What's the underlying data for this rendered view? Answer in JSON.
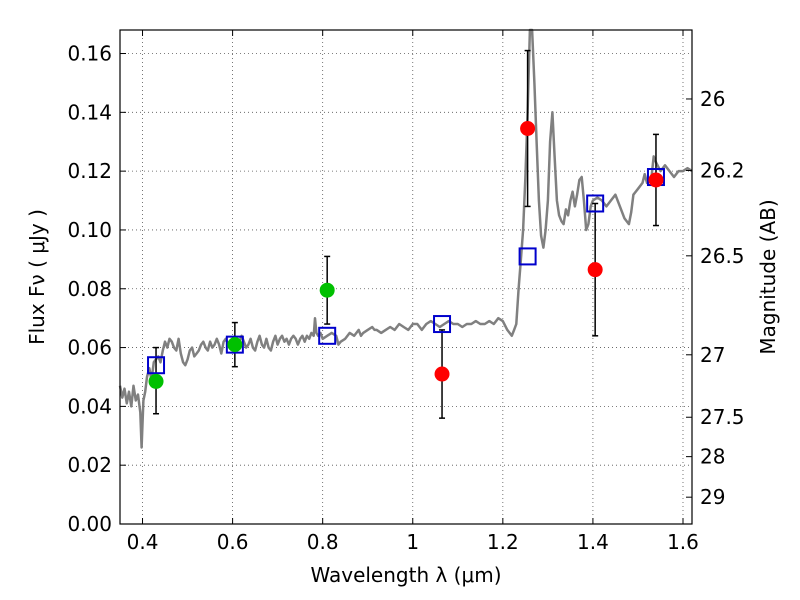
{
  "chart_data": {
    "type": "scatter",
    "xlabel": "Wavelength  λ (μm)",
    "ylabel": "Flux  Fν  ( μJy )",
    "ylabel_right": "Magnitude (AB)",
    "xlim": [
      0.35,
      1.62
    ],
    "ylim": [
      0.0,
      0.168
    ],
    "grid": true,
    "x_ticks": [
      0.4,
      0.6,
      0.8,
      1.0,
      1.2,
      1.4,
      1.6
    ],
    "x_tick_labels": [
      "0.4",
      "0.6",
      "0.8",
      "1",
      "1.2",
      "1.4",
      "1.6"
    ],
    "y_ticks": [
      0.0,
      0.02,
      0.04,
      0.06,
      0.08,
      0.1,
      0.12,
      0.14,
      0.16
    ],
    "y_tick_labels": [
      "0.00",
      "0.02",
      "0.04",
      "0.06",
      "0.08",
      "0.10",
      "0.12",
      "0.14",
      "0.16"
    ],
    "right_ticks": [
      {
        "label": "26",
        "mag": 26.0
      },
      {
        "label": "26.2",
        "mag": 26.2
      },
      {
        "label": "26.5",
        "mag": 26.5
      },
      {
        "label": "27",
        "mag": 27.0
      },
      {
        "label": "27.5",
        "mag": 27.5
      },
      {
        "label": "28",
        "mag": 28.0
      },
      {
        "label": "29",
        "mag": 29.0
      }
    ],
    "colors": {
      "spectrum": "#808080",
      "model_box": "#0000cc",
      "green_points": "#00c000",
      "red_points": "#ff0000",
      "errorbar": "#000000",
      "grid": "#555555"
    },
    "spectrum": [
      [
        0.35,
        0.047
      ],
      [
        0.355,
        0.043
      ],
      [
        0.36,
        0.046
      ],
      [
        0.365,
        0.041
      ],
      [
        0.37,
        0.045
      ],
      [
        0.375,
        0.04
      ],
      [
        0.38,
        0.047
      ],
      [
        0.385,
        0.042
      ],
      [
        0.39,
        0.044
      ],
      [
        0.395,
        0.038
      ],
      [
        0.398,
        0.026
      ],
      [
        0.402,
        0.042
      ],
      [
        0.406,
        0.045
      ],
      [
        0.41,
        0.05
      ],
      [
        0.415,
        0.053
      ],
      [
        0.42,
        0.049
      ],
      [
        0.425,
        0.055
      ],
      [
        0.43,
        0.056
      ],
      [
        0.435,
        0.057
      ],
      [
        0.44,
        0.055
      ],
      [
        0.445,
        0.059
      ],
      [
        0.45,
        0.062
      ],
      [
        0.455,
        0.06
      ],
      [
        0.46,
        0.063
      ],
      [
        0.465,
        0.062
      ],
      [
        0.47,
        0.06
      ],
      [
        0.475,
        0.059
      ],
      [
        0.48,
        0.063
      ],
      [
        0.485,
        0.058
      ],
      [
        0.49,
        0.055
      ],
      [
        0.495,
        0.054
      ],
      [
        0.5,
        0.056
      ],
      [
        0.505,
        0.059
      ],
      [
        0.51,
        0.06
      ],
      [
        0.515,
        0.057
      ],
      [
        0.52,
        0.058
      ],
      [
        0.525,
        0.059
      ],
      [
        0.53,
        0.061
      ],
      [
        0.535,
        0.062
      ],
      [
        0.54,
        0.06
      ],
      [
        0.545,
        0.059
      ],
      [
        0.55,
        0.062
      ],
      [
        0.555,
        0.06
      ],
      [
        0.56,
        0.061
      ],
      [
        0.565,
        0.063
      ],
      [
        0.57,
        0.061
      ],
      [
        0.575,
        0.058
      ],
      [
        0.58,
        0.062
      ],
      [
        0.585,
        0.063
      ],
      [
        0.59,
        0.061
      ],
      [
        0.6,
        0.062
      ],
      [
        0.61,
        0.059
      ],
      [
        0.615,
        0.062
      ],
      [
        0.62,
        0.064
      ],
      [
        0.625,
        0.062
      ],
      [
        0.63,
        0.06
      ],
      [
        0.635,
        0.061
      ],
      [
        0.64,
        0.063
      ],
      [
        0.645,
        0.06
      ],
      [
        0.65,
        0.059
      ],
      [
        0.655,
        0.062
      ],
      [
        0.66,
        0.064
      ],
      [
        0.665,
        0.061
      ],
      [
        0.67,
        0.06
      ],
      [
        0.675,
        0.063
      ],
      [
        0.68,
        0.06
      ],
      [
        0.685,
        0.059
      ],
      [
        0.69,
        0.062
      ],
      [
        0.695,
        0.064
      ],
      [
        0.7,
        0.061
      ],
      [
        0.705,
        0.063
      ],
      [
        0.71,
        0.064
      ],
      [
        0.715,
        0.062
      ],
      [
        0.72,
        0.063
      ],
      [
        0.725,
        0.061
      ],
      [
        0.73,
        0.063
      ],
      [
        0.735,
        0.064
      ],
      [
        0.74,
        0.063
      ],
      [
        0.745,
        0.061
      ],
      [
        0.75,
        0.063
      ],
      [
        0.755,
        0.064
      ],
      [
        0.76,
        0.062
      ],
      [
        0.765,
        0.064
      ],
      [
        0.77,
        0.063
      ],
      [
        0.775,
        0.065
      ],
      [
        0.78,
        0.064
      ],
      [
        0.783,
        0.07
      ],
      [
        0.786,
        0.065
      ],
      [
        0.79,
        0.064
      ],
      [
        0.795,
        0.065
      ],
      [
        0.8,
        0.063
      ],
      [
        0.81,
        0.064
      ],
      [
        0.82,
        0.065
      ],
      [
        0.83,
        0.064
      ],
      [
        0.835,
        0.061
      ],
      [
        0.84,
        0.062
      ],
      [
        0.85,
        0.063
      ],
      [
        0.86,
        0.065
      ],
      [
        0.87,
        0.064
      ],
      [
        0.88,
        0.066
      ],
      [
        0.885,
        0.064
      ],
      [
        0.89,
        0.065
      ],
      [
        0.9,
        0.066
      ],
      [
        0.91,
        0.067
      ],
      [
        0.915,
        0.066
      ],
      [
        0.92,
        0.066
      ],
      [
        0.93,
        0.065
      ],
      [
        0.94,
        0.066
      ],
      [
        0.95,
        0.067
      ],
      [
        0.96,
        0.066
      ],
      [
        0.97,
        0.068
      ],
      [
        0.98,
        0.067
      ],
      [
        0.99,
        0.066
      ],
      [
        1.0,
        0.068
      ],
      [
        1.01,
        0.068
      ],
      [
        1.02,
        0.066
      ],
      [
        1.03,
        0.068
      ],
      [
        1.04,
        0.069
      ],
      [
        1.05,
        0.068
      ],
      [
        1.06,
        0.067
      ],
      [
        1.07,
        0.068
      ],
      [
        1.08,
        0.069
      ],
      [
        1.09,
        0.068
      ],
      [
        1.1,
        0.068
      ],
      [
        1.11,
        0.067
      ],
      [
        1.12,
        0.068
      ],
      [
        1.13,
        0.068
      ],
      [
        1.14,
        0.069
      ],
      [
        1.15,
        0.068
      ],
      [
        1.16,
        0.068
      ],
      [
        1.17,
        0.069
      ],
      [
        1.18,
        0.068
      ],
      [
        1.19,
        0.07
      ],
      [
        1.2,
        0.069
      ],
      [
        1.21,
        0.066
      ],
      [
        1.215,
        0.065
      ],
      [
        1.22,
        0.064
      ],
      [
        1.225,
        0.066
      ],
      [
        1.23,
        0.068
      ],
      [
        1.235,
        0.08
      ],
      [
        1.24,
        0.09
      ],
      [
        1.245,
        0.1
      ],
      [
        1.25,
        0.118
      ],
      [
        1.255,
        0.14
      ],
      [
        1.26,
        0.168
      ],
      [
        1.265,
        0.168
      ],
      [
        1.27,
        0.15
      ],
      [
        1.275,
        0.13
      ],
      [
        1.28,
        0.11
      ],
      [
        1.285,
        0.098
      ],
      [
        1.29,
        0.094
      ],
      [
        1.295,
        0.1
      ],
      [
        1.3,
        0.11
      ],
      [
        1.305,
        0.13
      ],
      [
        1.31,
        0.14
      ],
      [
        1.315,
        0.125
      ],
      [
        1.32,
        0.11
      ],
      [
        1.325,
        0.105
      ],
      [
        1.33,
        0.103
      ],
      [
        1.335,
        0.102
      ],
      [
        1.34,
        0.107
      ],
      [
        1.345,
        0.105
      ],
      [
        1.35,
        0.11
      ],
      [
        1.355,
        0.113
      ],
      [
        1.36,
        0.108
      ],
      [
        1.365,
        0.112
      ],
      [
        1.37,
        0.117
      ],
      [
        1.375,
        0.118
      ],
      [
        1.38,
        0.11
      ],
      [
        1.385,
        0.1
      ],
      [
        1.39,
        0.102
      ],
      [
        1.395,
        0.108
      ],
      [
        1.4,
        0.11
      ],
      [
        1.41,
        0.111
      ],
      [
        1.42,
        0.11
      ],
      [
        1.43,
        0.108
      ],
      [
        1.44,
        0.11
      ],
      [
        1.45,
        0.112
      ],
      [
        1.46,
        0.108
      ],
      [
        1.47,
        0.104
      ],
      [
        1.48,
        0.102
      ],
      [
        1.485,
        0.106
      ],
      [
        1.49,
        0.112
      ],
      [
        1.5,
        0.114
      ],
      [
        1.51,
        0.116
      ],
      [
        1.515,
        0.119
      ],
      [
        1.52,
        0.116
      ],
      [
        1.53,
        0.118
      ],
      [
        1.535,
        0.125
      ],
      [
        1.54,
        0.123
      ],
      [
        1.55,
        0.12
      ],
      [
        1.56,
        0.122
      ],
      [
        1.57,
        0.12
      ],
      [
        1.58,
        0.118
      ],
      [
        1.59,
        0.12
      ],
      [
        1.6,
        0.12
      ],
      [
        1.61,
        0.121
      ],
      [
        1.62,
        0.12
      ]
    ],
    "model_boxes": [
      {
        "x": 0.43,
        "y": 0.054
      },
      {
        "x": 0.605,
        "y": 0.061
      },
      {
        "x": 0.81,
        "y": 0.064
      },
      {
        "x": 1.065,
        "y": 0.068
      },
      {
        "x": 1.255,
        "y": 0.091
      },
      {
        "x": 1.405,
        "y": 0.109
      },
      {
        "x": 1.54,
        "y": 0.118
      }
    ],
    "green_points": [
      {
        "x": 0.43,
        "y": 0.0485,
        "err_low": 0.011,
        "err_high": 0.0115
      },
      {
        "x": 0.605,
        "y": 0.061,
        "err_low": 0.0075,
        "err_high": 0.0075
      },
      {
        "x": 0.81,
        "y": 0.0795,
        "err_low": 0.0115,
        "err_high": 0.0115
      }
    ],
    "red_points": [
      {
        "x": 1.065,
        "y": 0.051,
        "err_low": 0.015,
        "err_high": 0.015
      },
      {
        "x": 1.255,
        "y": 0.1345,
        "err_low": 0.0265,
        "err_high": 0.0265
      },
      {
        "x": 1.405,
        "y": 0.0865,
        "err_low": 0.0225,
        "err_high": 0.0225
      },
      {
        "x": 1.54,
        "y": 0.117,
        "err_low": 0.0155,
        "err_high": 0.0155
      }
    ]
  }
}
